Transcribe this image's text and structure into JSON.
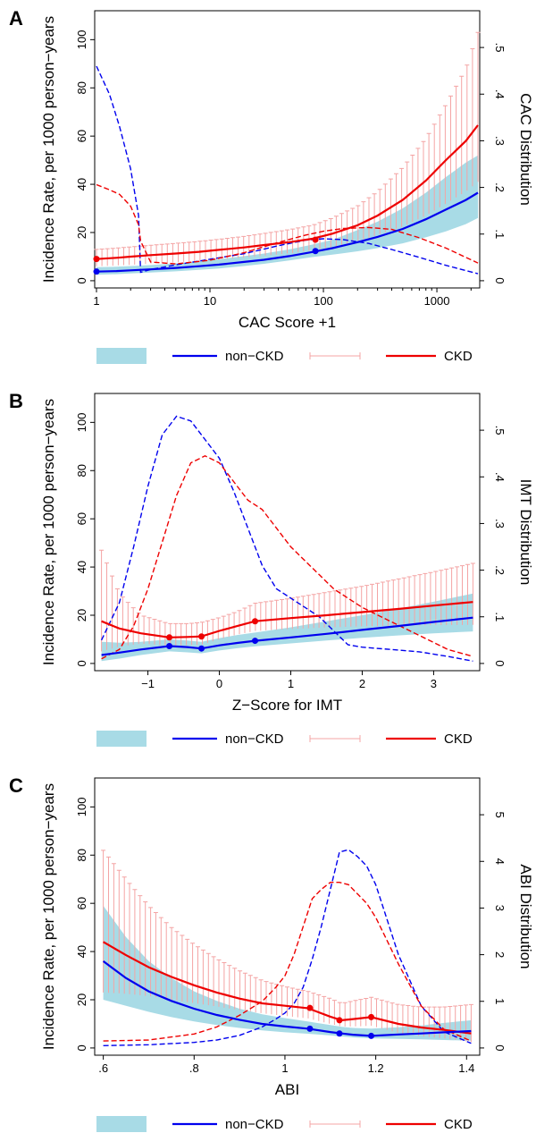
{
  "colors": {
    "ci_band": "#a8dbe6",
    "non_ckd": "#0000ee",
    "ckd": "#ee0000",
    "ckd_ci": "#f4a4a4"
  },
  "legend": [
    "non−CKD",
    "CKD"
  ],
  "chart_data": [
    {
      "panel": "A",
      "type": "line",
      "log_x": true,
      "xlabel": "CAC Score +1",
      "ylabel": "Incidence Rate, per 1000 person−years",
      "y2label": "CAC Distribution",
      "xlim": [
        1,
        2300
      ],
      "ylim": [
        -3,
        112
      ],
      "y2lim": [
        -0.0155,
        0.5788
      ],
      "xticks": [
        {
          "v": 1,
          "t": "1"
        },
        {
          "v": 10,
          "t": "10"
        },
        {
          "v": 100,
          "t": "100"
        },
        {
          "v": 1000,
          "t": "1000"
        }
      ],
      "yticks": [
        {
          "v": 0,
          "t": "0"
        },
        {
          "v": 20,
          "t": "20"
        },
        {
          "v": 40,
          "t": "40"
        },
        {
          "v": 60,
          "t": "60"
        },
        {
          "v": 80,
          "t": "80"
        },
        {
          "v": 100,
          "t": "100"
        }
      ],
      "y2ticks": [
        {
          "v": 0,
          "t": "0"
        },
        {
          "v": 0.1,
          "t": ".1"
        },
        {
          "v": 0.2,
          "t": ".2"
        },
        {
          "v": 0.3,
          "t": ".3"
        },
        {
          "v": 0.4,
          "t": ".4"
        },
        {
          "v": 0.5,
          "t": ".5"
        }
      ],
      "x": [
        1,
        1.5,
        2,
        3,
        5,
        8,
        12,
        20,
        30,
        50,
        80,
        120,
        200,
        300,
        500,
        800,
        1200,
        1800,
        2300
      ],
      "non_ckd": [
        3.8,
        4.0,
        4.3,
        4.7,
        5.3,
        6.0,
        6.7,
        7.8,
        8.7,
        10.2,
        11.9,
        13.5,
        16.0,
        18.2,
        21.5,
        25.5,
        29.5,
        33.5,
        36.5
      ],
      "band_lo": [
        2.5,
        2.7,
        3.0,
        3.4,
        3.9,
        4.5,
        5.1,
        6.1,
        7.0,
        8.4,
        9.8,
        10.8,
        12.2,
        13.5,
        15.5,
        18.0,
        20.5,
        23.5,
        26.0
      ],
      "band_hi": [
        5.6,
        5.8,
        6.1,
        6.5,
        7.2,
        8.0,
        8.9,
        10.2,
        11.3,
        13.0,
        15.0,
        17.0,
        21.0,
        24.5,
        30.0,
        36.5,
        43.0,
        49.0,
        52.0
      ],
      "ckd": [
        9.0,
        9.5,
        10.0,
        10.6,
        11.3,
        12.0,
        12.8,
        13.8,
        14.8,
        16.0,
        17.4,
        19.5,
        23.0,
        27.0,
        33.5,
        41.5,
        50.0,
        58.0,
        64.5
      ],
      "ckd_lo": [
        6.0,
        6.3,
        6.6,
        7.1,
        7.6,
        8.2,
        8.8,
        9.6,
        10.4,
        11.4,
        12.6,
        14.0,
        16.5,
        19.0,
        22.5,
        27.0,
        32.0,
        37.0,
        41.0
      ],
      "ckd_hi": [
        13.0,
        13.5,
        14.0,
        14.7,
        15.5,
        16.3,
        17.2,
        18.4,
        19.6,
        21.2,
        23.0,
        26.0,
        31.0,
        37.0,
        47.0,
        59.0,
        73.0,
        88.0,
        103.0
      ],
      "non_ckd_pts": [
        {
          "x": 1,
          "y": 3.8
        },
        {
          "x": 85,
          "y": 12.3
        }
      ],
      "ckd_pts": [
        {
          "x": 1,
          "y": 9.0
        },
        {
          "x": 85,
          "y": 17.0
        }
      ],
      "dist_x": [
        1,
        1.3,
        1.6,
        2,
        2.35,
        2.45,
        3,
        5,
        10,
        20,
        40,
        70,
        100,
        150,
        250,
        400,
        700,
        1200,
        2300
      ],
      "dist_non_ckd": [
        0.46,
        0.4,
        0.33,
        0.24,
        0.14,
        0.018,
        0.024,
        0.034,
        0.046,
        0.058,
        0.075,
        0.087,
        0.09,
        0.088,
        0.08,
        0.067,
        0.05,
        0.033,
        0.015
      ],
      "dist_ckd": [
        0.206,
        0.195,
        0.185,
        0.16,
        0.12,
        0.085,
        0.04,
        0.036,
        0.044,
        0.06,
        0.082,
        0.098,
        0.106,
        0.112,
        0.114,
        0.11,
        0.092,
        0.07,
        0.038
      ]
    },
    {
      "panel": "B",
      "type": "line",
      "log_x": false,
      "xlabel": "Z−Score for IMT",
      "ylabel": "Incidence Rate, per 1000 person−years",
      "y2label": "IMT Distribution",
      "xlim": [
        -1.72,
        3.62
      ],
      "ylim": [
        -3,
        112
      ],
      "y2lim": [
        -0.0155,
        0.5788
      ],
      "xticks": [
        {
          "v": -1,
          "t": "−1"
        },
        {
          "v": 0,
          "t": "0"
        },
        {
          "v": 1,
          "t": "1"
        },
        {
          "v": 2,
          "t": "2"
        },
        {
          "v": 3,
          "t": "3"
        }
      ],
      "yticks": [
        {
          "v": 0,
          "t": "0"
        },
        {
          "v": 20,
          "t": "20"
        },
        {
          "v": 40,
          "t": "40"
        },
        {
          "v": 60,
          "t": "60"
        },
        {
          "v": 80,
          "t": "80"
        },
        {
          "v": 100,
          "t": "100"
        }
      ],
      "y2ticks": [
        {
          "v": 0,
          "t": "0"
        },
        {
          "v": 0.1,
          "t": ".1"
        },
        {
          "v": 0.2,
          "t": ".2"
        },
        {
          "v": 0.3,
          "t": ".3"
        },
        {
          "v": 0.4,
          "t": ".4"
        },
        {
          "v": 0.5,
          "t": ".5"
        }
      ],
      "x": [
        -1.65,
        -1.4,
        -1.1,
        -0.7,
        -0.45,
        -0.25,
        0,
        0.25,
        0.5,
        1,
        1.5,
        2,
        2.5,
        3,
        3.55
      ],
      "non_ckd": [
        3.5,
        4.5,
        5.8,
        7.2,
        6.8,
        6.2,
        7.5,
        8.5,
        9.4,
        10.8,
        12.3,
        13.9,
        15.5,
        17.2,
        19.0
      ],
      "band_lo": [
        1.0,
        2.0,
        3.5,
        5.0,
        4.6,
        4.2,
        5.4,
        6.3,
        7.1,
        8.3,
        9.5,
        10.6,
        11.6,
        12.5,
        13.3
      ],
      "band_hi": [
        9.0,
        8.6,
        9.0,
        10.0,
        9.5,
        9.0,
        10.5,
        11.8,
        12.8,
        15.0,
        17.5,
        20.0,
        22.7,
        25.6,
        29.0
      ],
      "ckd": [
        17.5,
        14.5,
        12.5,
        10.8,
        11.0,
        11.2,
        13.5,
        15.5,
        17.5,
        18.8,
        20.0,
        21.3,
        22.6,
        24.0,
        25.5
      ],
      "ckd_lo": [
        5.0,
        7.0,
        8.2,
        7.4,
        7.6,
        7.8,
        10.0,
        12.0,
        13.5,
        14.3,
        14.9,
        15.4,
        15.7,
        15.9,
        16.0
      ],
      "ckd_hi": [
        47.0,
        29.0,
        20.0,
        16.5,
        16.5,
        17.0,
        19.0,
        21.5,
        25.0,
        27.0,
        29.5,
        32.0,
        35.0,
        38.0,
        41.5
      ],
      "non_ckd_pts": [
        {
          "x": -0.7,
          "y": 7.2
        },
        {
          "x": -0.25,
          "y": 6.2
        },
        {
          "x": 0.5,
          "y": 9.4
        }
      ],
      "ckd_pts": [
        {
          "x": -0.7,
          "y": 10.8
        },
        {
          "x": -0.25,
          "y": 11.2
        },
        {
          "x": 0.5,
          "y": 17.5
        }
      ],
      "dist_x": [
        -1.65,
        -1.4,
        -1.2,
        -1.0,
        -0.8,
        -0.6,
        -0.4,
        -0.2,
        0,
        0.2,
        0.4,
        0.6,
        0.8,
        1.0,
        1.2,
        1.4,
        1.6,
        1.8,
        2.0,
        2.4,
        2.8,
        3.2,
        3.55
      ],
      "dist_non_ckd": [
        0.05,
        0.13,
        0.25,
        0.38,
        0.49,
        0.53,
        0.52,
        0.48,
        0.44,
        0.37,
        0.29,
        0.21,
        0.16,
        0.14,
        0.12,
        0.1,
        0.07,
        0.04,
        0.035,
        0.03,
        0.025,
        0.015,
        0.005
      ],
      "dist_ckd": [
        0.01,
        0.03,
        0.08,
        0.16,
        0.26,
        0.36,
        0.43,
        0.445,
        0.43,
        0.39,
        0.35,
        0.33,
        0.29,
        0.25,
        0.22,
        0.19,
        0.16,
        0.14,
        0.12,
        0.09,
        0.06,
        0.03,
        0.015
      ]
    },
    {
      "panel": "C",
      "type": "line",
      "log_x": false,
      "xlabel": "ABI",
      "ylabel": "Incidence Rate, per 1000 person−years",
      "y2label": "ABI Distribution",
      "xlim": [
        0.585,
        1.425
      ],
      "ylim": [
        -3,
        112
      ],
      "y2lim": [
        -0.155,
        5.788
      ],
      "xticks": [
        {
          "v": 0.6,
          "t": ".6"
        },
        {
          "v": 0.8,
          "t": ".8"
        },
        {
          "v": 1.0,
          "t": "1"
        },
        {
          "v": 1.2,
          "t": "1.2"
        },
        {
          "v": 1.4,
          "t": "1.4"
        }
      ],
      "yticks": [
        {
          "v": 0,
          "t": "0"
        },
        {
          "v": 20,
          "t": "20"
        },
        {
          "v": 40,
          "t": "40"
        },
        {
          "v": 60,
          "t": "60"
        },
        {
          "v": 80,
          "t": "80"
        },
        {
          "v": 100,
          "t": "100"
        }
      ],
      "y2ticks": [
        {
          "v": 0,
          "t": "0"
        },
        {
          "v": 1,
          "t": "1"
        },
        {
          "v": 2,
          "t": "2"
        },
        {
          "v": 3,
          "t": "3"
        },
        {
          "v": 4,
          "t": "4"
        },
        {
          "v": 5,
          "t": "5"
        }
      ],
      "x": [
        0.6,
        0.65,
        0.7,
        0.75,
        0.8,
        0.85,
        0.9,
        0.95,
        1.0,
        1.05,
        1.1,
        1.125,
        1.15,
        1.19,
        1.25,
        1.3,
        1.35,
        1.41
      ],
      "non_ckd": [
        36.0,
        29.0,
        23.5,
        19.5,
        16.3,
        13.7,
        11.7,
        10.0,
        8.9,
        8.0,
        6.6,
        6.0,
        5.5,
        5.0,
        5.6,
        6.0,
        6.5,
        7.0
      ],
      "band_lo": [
        20.0,
        17.5,
        15.0,
        12.8,
        11.0,
        9.5,
        8.3,
        7.3,
        6.5,
        5.9,
        5.2,
        4.8,
        4.4,
        4.0,
        3.8,
        3.6,
        3.3,
        3.0
      ],
      "band_hi": [
        59.0,
        46.0,
        36.0,
        29.0,
        23.5,
        19.5,
        16.3,
        14.0,
        12.4,
        11.0,
        9.5,
        8.8,
        8.3,
        8.0,
        8.6,
        9.3,
        10.4,
        11.5
      ],
      "ckd": [
        44.0,
        38.5,
        33.5,
        29.5,
        26.0,
        23.0,
        20.5,
        18.5,
        17.5,
        16.5,
        13.0,
        11.5,
        12.0,
        12.8,
        10.0,
        8.5,
        7.5,
        6.0
      ],
      "ckd_lo": [
        23.0,
        22.5,
        21.5,
        20.0,
        18.6,
        17.2,
        15.7,
        14.4,
        13.3,
        12.3,
        10.0,
        8.9,
        8.9,
        9.2,
        6.3,
        4.9,
        4.0,
        2.5
      ],
      "ckd_hi": [
        82.0,
        70.0,
        59.0,
        50.0,
        43.0,
        37.0,
        32.0,
        28.0,
        25.5,
        23.5,
        20.5,
        18.5,
        19.5,
        21.0,
        18.0,
        17.0,
        17.0,
        18.0
      ],
      "non_ckd_pts": [
        {
          "x": 1.055,
          "y": 8.0
        },
        {
          "x": 1.12,
          "y": 6.0
        },
        {
          "x": 1.19,
          "y": 5.0
        }
      ],
      "ckd_pts": [
        {
          "x": 1.055,
          "y": 16.6
        },
        {
          "x": 1.12,
          "y": 11.5
        },
        {
          "x": 1.19,
          "y": 12.8
        }
      ],
      "dist_x": [
        0.6,
        0.7,
        0.8,
        0.85,
        0.9,
        0.95,
        0.98,
        1.0,
        1.02,
        1.04,
        1.06,
        1.08,
        1.1,
        1.12,
        1.14,
        1.16,
        1.18,
        1.2,
        1.22,
        1.25,
        1.3,
        1.35,
        1.41
      ],
      "dist_non_ckd": [
        0.05,
        0.07,
        0.12,
        0.17,
        0.27,
        0.45,
        0.62,
        0.75,
        0.95,
        1.3,
        1.9,
        2.6,
        3.4,
        4.2,
        4.25,
        4.1,
        3.9,
        3.5,
        2.9,
        2.0,
        0.9,
        0.35,
        0.1
      ],
      "dist_ckd": [
        0.15,
        0.17,
        0.3,
        0.45,
        0.7,
        1.0,
        1.3,
        1.55,
        2.0,
        2.6,
        3.2,
        3.4,
        3.55,
        3.55,
        3.5,
        3.3,
        3.1,
        2.8,
        2.4,
        1.8,
        0.9,
        0.4,
        0.15
      ]
    }
  ]
}
